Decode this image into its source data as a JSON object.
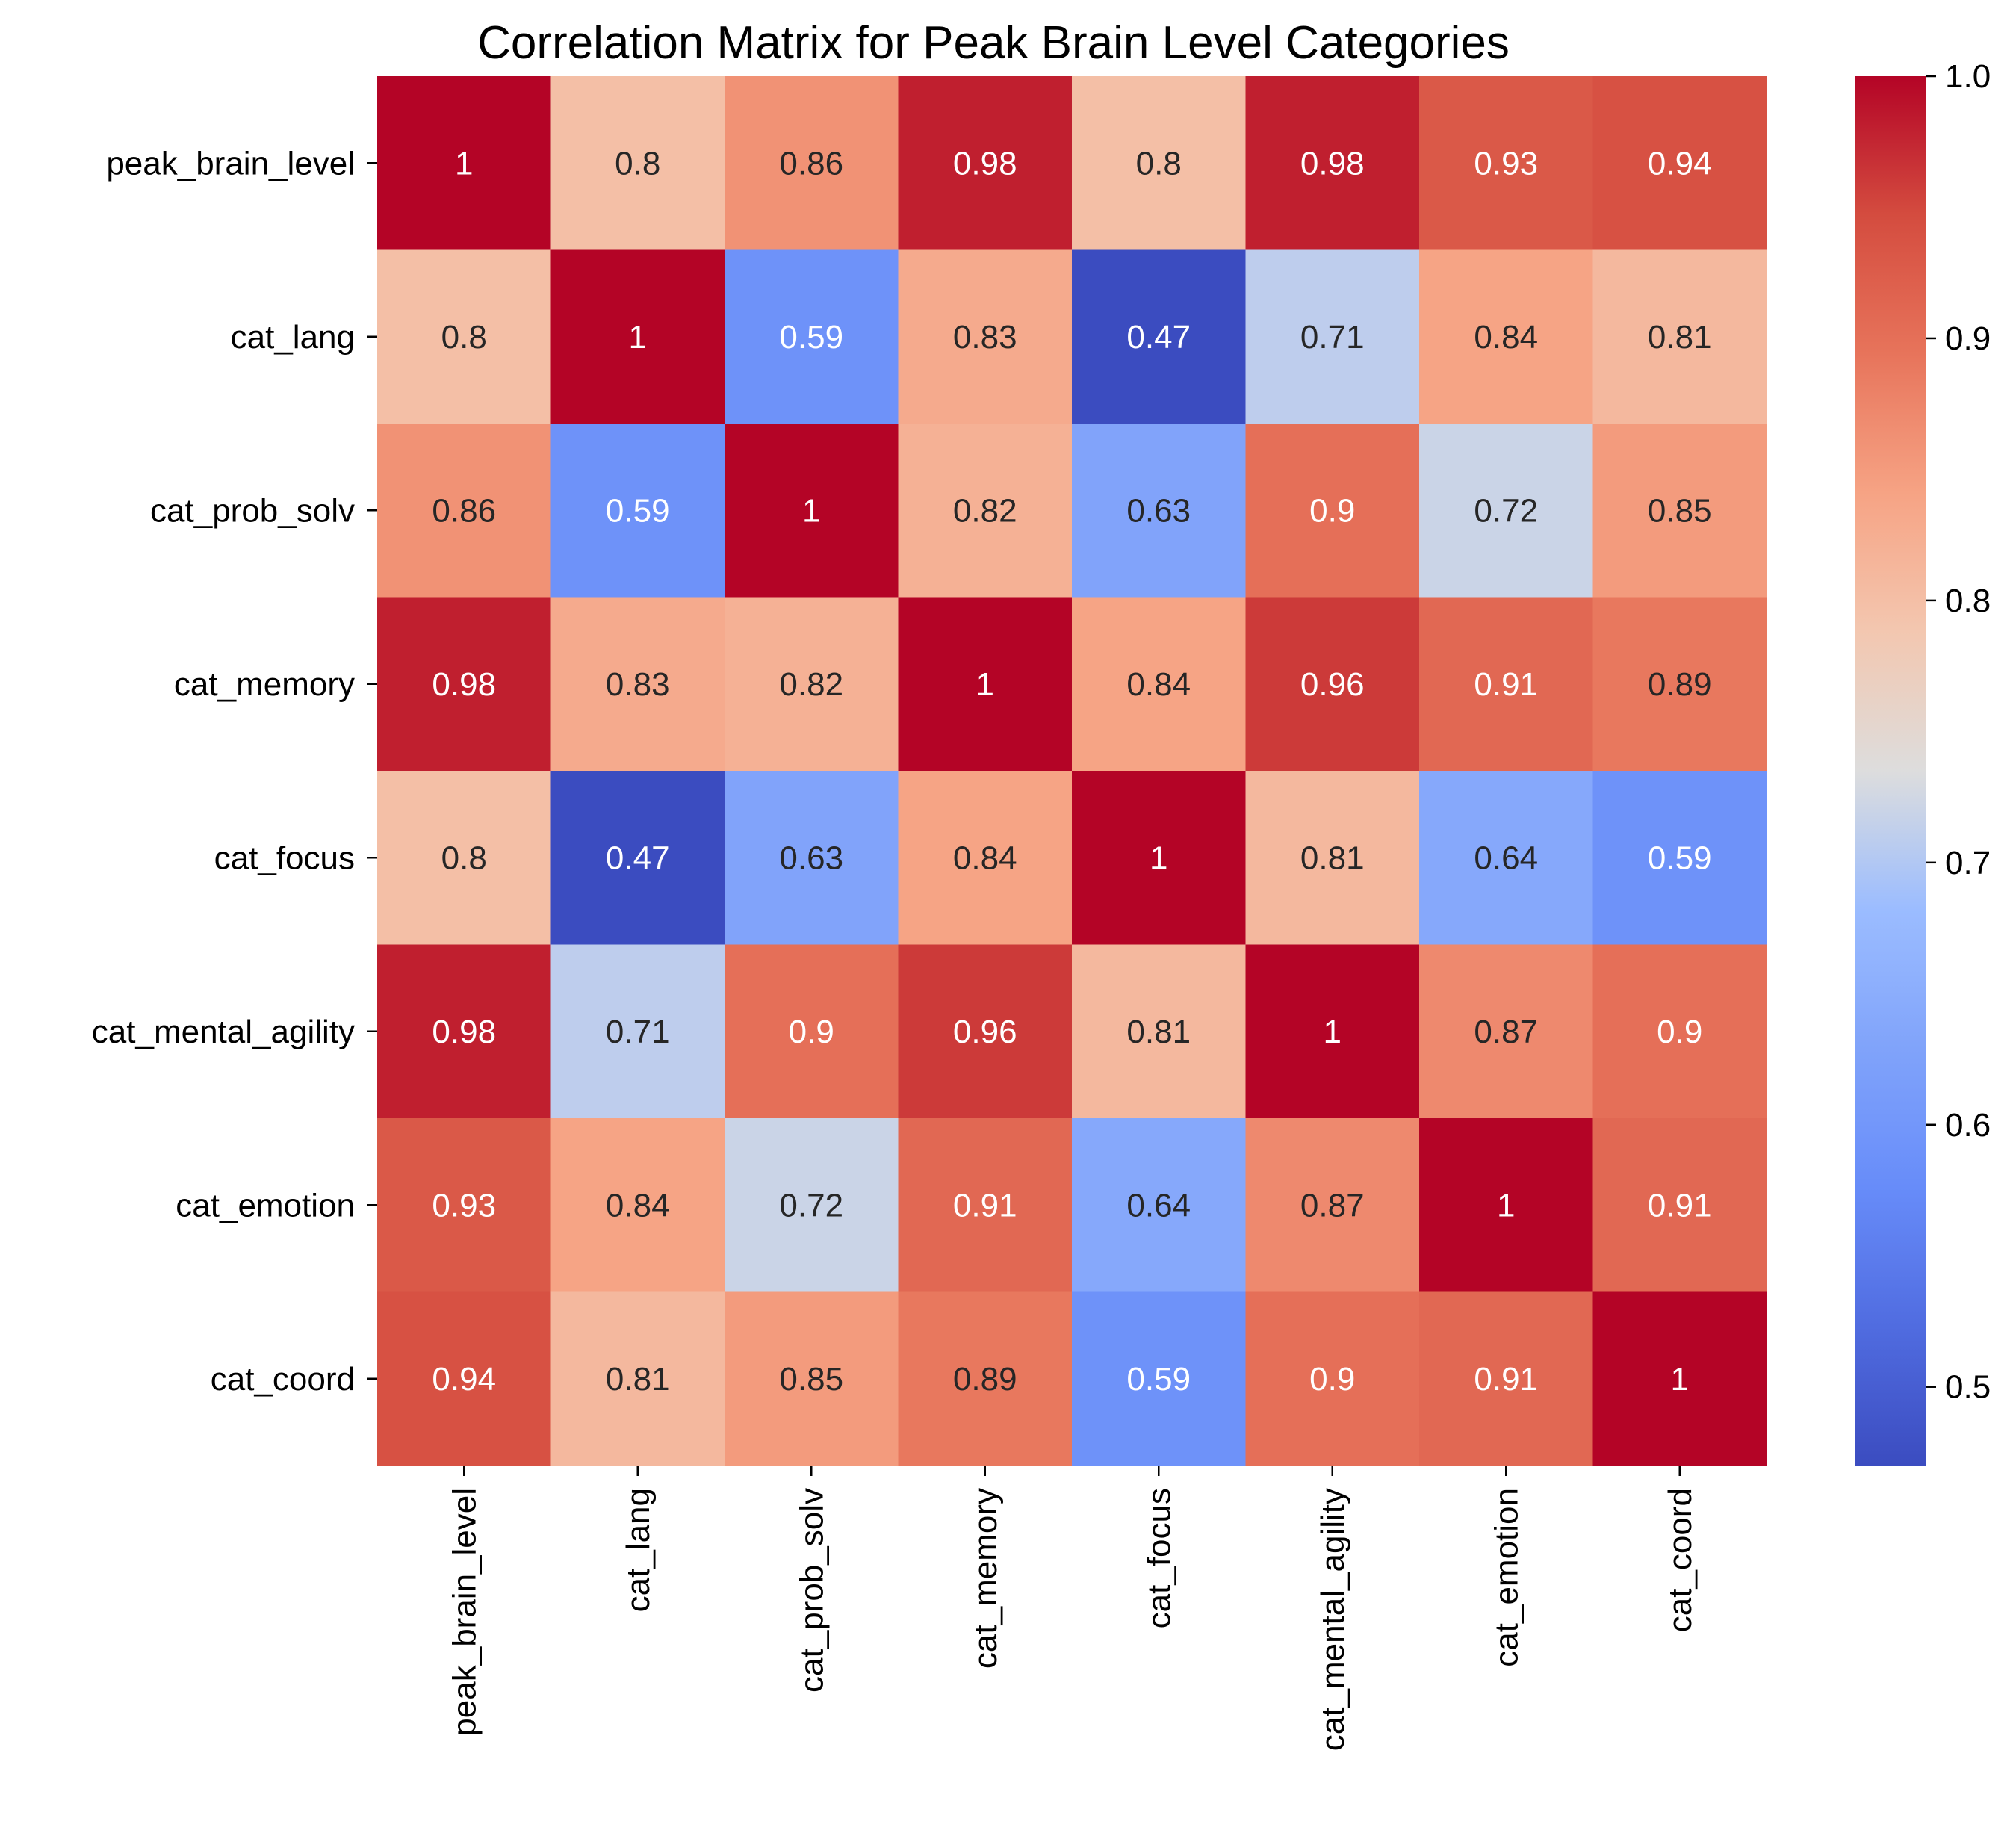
{
  "chart_data": {
    "type": "heatmap",
    "title": "Correlation Matrix for Peak Brain Level Categories",
    "colormap": "coolwarm",
    "row_labels": [
      "peak_brain_level",
      "cat_lang",
      "cat_prob_solv",
      "cat_memory",
      "cat_focus",
      "cat_mental_agility",
      "cat_emotion",
      "cat_coord"
    ],
    "col_labels": [
      "peak_brain_level",
      "cat_lang",
      "cat_prob_solv",
      "cat_memory",
      "cat_focus",
      "cat_mental_agility",
      "cat_emotion",
      "cat_coord"
    ],
    "values": [
      [
        1,
        0.8,
        0.86,
        0.98,
        0.8,
        0.98,
        0.93,
        0.94
      ],
      [
        0.8,
        1,
        0.59,
        0.83,
        0.47,
        0.71,
        0.84,
        0.81
      ],
      [
        0.86,
        0.59,
        1,
        0.82,
        0.63,
        0.9,
        0.72,
        0.85
      ],
      [
        0.98,
        0.83,
        0.82,
        1,
        0.84,
        0.96,
        0.91,
        0.89
      ],
      [
        0.8,
        0.47,
        0.63,
        0.84,
        1,
        0.81,
        0.64,
        0.59
      ],
      [
        0.98,
        0.71,
        0.9,
        0.96,
        0.81,
        1,
        0.87,
        0.9
      ],
      [
        0.93,
        0.84,
        0.72,
        0.91,
        0.64,
        0.87,
        1,
        0.91
      ],
      [
        0.94,
        0.81,
        0.85,
        0.89,
        0.59,
        0.9,
        0.91,
        1
      ]
    ],
    "value_labels": [
      [
        "1",
        "0.8",
        "0.86",
        "0.98",
        "0.8",
        "0.98",
        "0.93",
        "0.94"
      ],
      [
        "0.8",
        "1",
        "0.59",
        "0.83",
        "0.47",
        "0.71",
        "0.84",
        "0.81"
      ],
      [
        "0.86",
        "0.59",
        "1",
        "0.82",
        "0.63",
        "0.9",
        "0.72",
        "0.85"
      ],
      [
        "0.98",
        "0.83",
        "0.82",
        "1",
        "0.84",
        "0.96",
        "0.91",
        "0.89"
      ],
      [
        "0.8",
        "0.47",
        "0.63",
        "0.84",
        "1",
        "0.81",
        "0.64",
        "0.59"
      ],
      [
        "0.98",
        "0.71",
        "0.9",
        "0.96",
        "0.81",
        "1",
        "0.87",
        "0.9"
      ],
      [
        "0.93",
        "0.84",
        "0.72",
        "0.91",
        "0.64",
        "0.87",
        "1",
        "0.91"
      ],
      [
        "0.94",
        "0.81",
        "0.85",
        "0.89",
        "0.59",
        "0.9",
        "0.91",
        "1"
      ]
    ],
    "vmin": 0.47,
    "vmax": 1.0,
    "colorbar_ticks": [
      "0.5",
      "0.6",
      "0.7",
      "0.8",
      "0.9",
      "1.0"
    ],
    "colorbar_tick_values": [
      0.5,
      0.6,
      0.7,
      0.8,
      0.9,
      1.0
    ],
    "legend_placement": "colorbar right",
    "grid": false
  }
}
